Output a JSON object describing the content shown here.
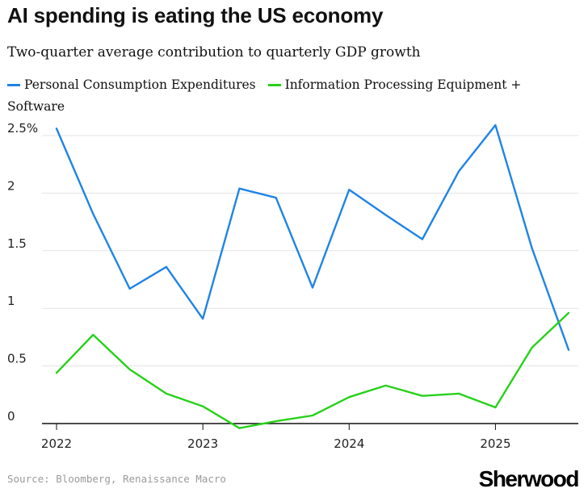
{
  "chart_data": {
    "type": "line",
    "title": "AI spending is eating the US economy",
    "subtitle": "Two-quarter average contribution to quarterly GDP growth",
    "x": [
      2022.0,
      2022.25,
      2022.5,
      2022.75,
      2023.0,
      2023.25,
      2023.5,
      2023.75,
      2024.0,
      2024.25,
      2024.5,
      2024.75,
      2025.0,
      2025.25,
      2025.5
    ],
    "series": [
      {
        "name": "Personal Consumption Expenditures",
        "color": "#1f84e6",
        "values": [
          2.56,
          1.82,
          1.17,
          1.36,
          0.91,
          2.04,
          1.96,
          1.18,
          2.03,
          1.81,
          1.6,
          2.19,
          2.59,
          1.52,
          0.64
        ]
      },
      {
        "name": "Information Processing Equipment + Software",
        "color": "#27d11a",
        "values": [
          0.44,
          0.77,
          0.47,
          0.26,
          0.15,
          -0.04,
          0.02,
          0.07,
          0.23,
          0.33,
          0.24,
          0.26,
          0.14,
          0.66,
          0.96
        ]
      }
    ],
    "y_ticks": [
      0,
      0.5,
      1,
      1.5,
      2,
      2.5
    ],
    "y_tick_labels": [
      "0",
      "0.5",
      "1",
      "1.5",
      "2",
      "2.5%"
    ],
    "x_ticks": [
      2022,
      2023,
      2024,
      2025
    ],
    "x_tick_labels": [
      "2022",
      "2023",
      "2024",
      "2025"
    ],
    "xlim": [
      2022.0,
      2025.5
    ],
    "ylim": [
      -0.1,
      2.6
    ],
    "grid": true,
    "legend": "top-left",
    "xlabel": "",
    "ylabel": ""
  },
  "source": "Source: Bloomberg, Renaissance Macro",
  "brand": "Sherwood"
}
